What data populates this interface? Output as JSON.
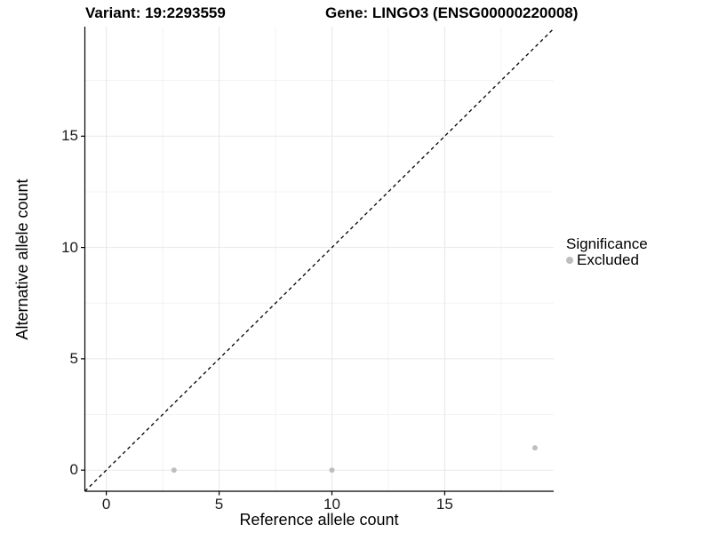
{
  "chart_data": {
    "type": "scatter",
    "title_left": "Variant: 19:2293559",
    "title_right": "Gene: LINGO3 (ENSG00000220008)",
    "xlabel": "Reference allele count",
    "ylabel": "Alternative allele count",
    "xlim": [
      -0.95,
      19.83
    ],
    "ylim": [
      -0.95,
      19.92
    ],
    "x_major_ticks": [
      0,
      5,
      10,
      15
    ],
    "y_major_ticks": [
      0,
      5,
      10,
      15
    ],
    "x_minor_ticks": [
      2.5,
      7.5,
      12.5,
      17.5
    ],
    "y_minor_ticks": [
      2.5,
      7.5,
      12.5,
      17.5
    ],
    "grid": "on",
    "points": [
      {
        "x": 3,
        "y": 0,
        "significance": "Excluded"
      },
      {
        "x": 10,
        "y": 0,
        "significance": "Excluded"
      },
      {
        "x": 19,
        "y": 1,
        "significance": "Excluded"
      }
    ],
    "identity_line": {
      "style": "dashed",
      "slope": 1,
      "intercept": 0,
      "from": -0.95,
      "to": 19.83
    },
    "legend": {
      "title": "Significance",
      "position": "right",
      "entries": [
        {
          "label": "Excluded",
          "color": "#bebebe"
        }
      ]
    },
    "colors": {
      "point_excluded": "#bebebe",
      "grid_major": "#e8e8e8",
      "grid_minor": "#f3f3f3",
      "axis_line": "#000000",
      "identity_line": "#000000",
      "text": "#000000",
      "background": "#ffffff"
    }
  }
}
